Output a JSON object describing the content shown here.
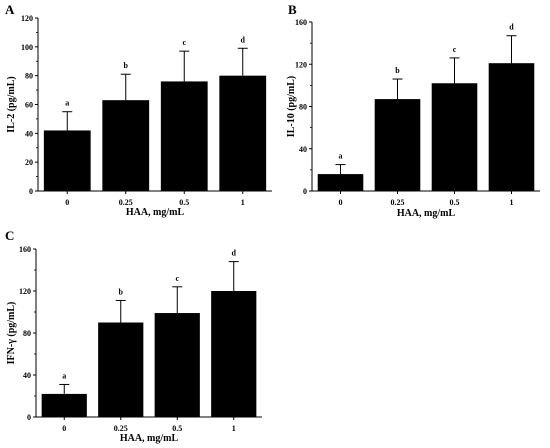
{
  "chart_data": [
    {
      "type": "bar",
      "panel": "A",
      "categories": [
        "0",
        "0.25",
        "0.5",
        "1"
      ],
      "series": [
        {
          "values": [
            42,
            63,
            76,
            80
          ],
          "errors": [
            13,
            18,
            21,
            19
          ],
          "significance": [
            "a",
            "b",
            "c",
            "d"
          ]
        }
      ],
      "xlabel": "HAA, mg/mL",
      "ylabel": "IL-2 (pg/mL)",
      "ylim": [
        0,
        120
      ],
      "yticks": [
        0,
        20,
        40,
        60,
        80,
        100,
        120
      ],
      "bar_color": "#000000",
      "grid": false
    },
    {
      "type": "bar",
      "panel": "B",
      "categories": [
        "0",
        "0.25",
        "0.5",
        "1"
      ],
      "series": [
        {
          "values": [
            16,
            87,
            102,
            121
          ],
          "errors": [
            9,
            19,
            24,
            26
          ],
          "significance": [
            "a",
            "b",
            "c",
            "d"
          ]
        }
      ],
      "xlabel": "HAA, mg/mL",
      "ylabel": "IL-10 (pg/mL)",
      "ylim": [
        0,
        160
      ],
      "yticks": [
        0,
        40,
        80,
        120,
        160
      ],
      "bar_color": "#000000",
      "grid": false
    },
    {
      "type": "bar",
      "panel": "C",
      "categories": [
        "0",
        "0.25",
        "0.5",
        "1"
      ],
      "series": [
        {
          "values": [
            22,
            90,
            99,
            120
          ],
          "errors": [
            9,
            21,
            25,
            28
          ],
          "significance": [
            "a",
            "b",
            "c",
            "d"
          ]
        }
      ],
      "xlabel": "HAA, mg/mL",
      "ylabel": "IFN-γ (pg/mL)",
      "ylim": [
        0,
        160
      ],
      "yticks": [
        0,
        40,
        80,
        120,
        160
      ],
      "bar_color": "#000000",
      "grid": false
    }
  ]
}
